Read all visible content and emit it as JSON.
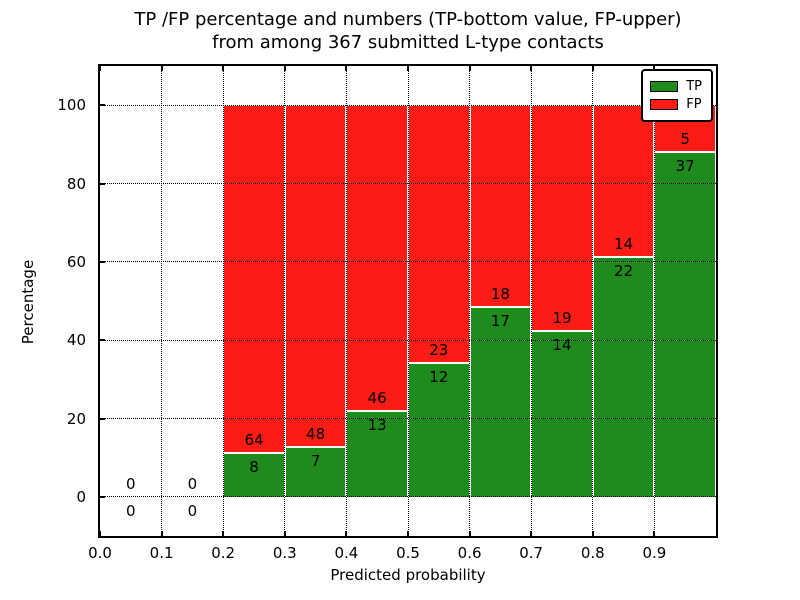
{
  "figure": {
    "title_line1": "TP /FP percentage and numbers (TP-bottom value, FP-upper)",
    "title_line2": "from among 367 submitted L-type contacts",
    "xlabel": "Predicted probability",
    "ylabel": "Percentage"
  },
  "legend": {
    "position": "upper right",
    "items": [
      {
        "label": "TP",
        "color": "#1f8b1d"
      },
      {
        "label": "FP",
        "color": "#fb1d15"
      }
    ]
  },
  "chart_data": {
    "type": "bar",
    "stacked": true,
    "title": "TP /FP percentage and numbers (TP-bottom value, FP-upper) from among 367 submitted L-type contacts",
    "xlabel": "Predicted probability",
    "ylabel": "Percentage",
    "xlim": [
      0.0,
      1.0
    ],
    "ylim": [
      -10,
      110
    ],
    "grid": true,
    "bin_width": 0.1,
    "xticks": [
      "0.0",
      "0.1",
      "0.2",
      "0.3",
      "0.4",
      "0.5",
      "0.6",
      "0.7",
      "0.8",
      "0.9"
    ],
    "yticks": [
      "0",
      "20",
      "40",
      "60",
      "80",
      "100"
    ],
    "colors": {
      "tp": "#1f8b1d",
      "fp": "#fb1d15",
      "bar_edge": "#ffffff",
      "grid": "#000000"
    },
    "series_note": "bars show TP percentage (green, bottom) and FP percentage (red, top) summing to 100%; labels are raw counts",
    "bars": [
      {
        "x_start": 0.0,
        "tp": 0,
        "fp": 0
      },
      {
        "x_start": 0.1,
        "tp": 0,
        "fp": 0
      },
      {
        "x_start": 0.2,
        "tp": 8,
        "fp": 64
      },
      {
        "x_start": 0.3,
        "tp": 7,
        "fp": 48
      },
      {
        "x_start": 0.4,
        "tp": 13,
        "fp": 46
      },
      {
        "x_start": 0.5,
        "tp": 12,
        "fp": 23
      },
      {
        "x_start": 0.6,
        "tp": 17,
        "fp": 18
      },
      {
        "x_start": 0.7,
        "tp": 14,
        "fp": 19
      },
      {
        "x_start": 0.8,
        "tp": 22,
        "fp": 14
      },
      {
        "x_start": 0.9,
        "tp": 37,
        "fp": 5
      }
    ]
  }
}
